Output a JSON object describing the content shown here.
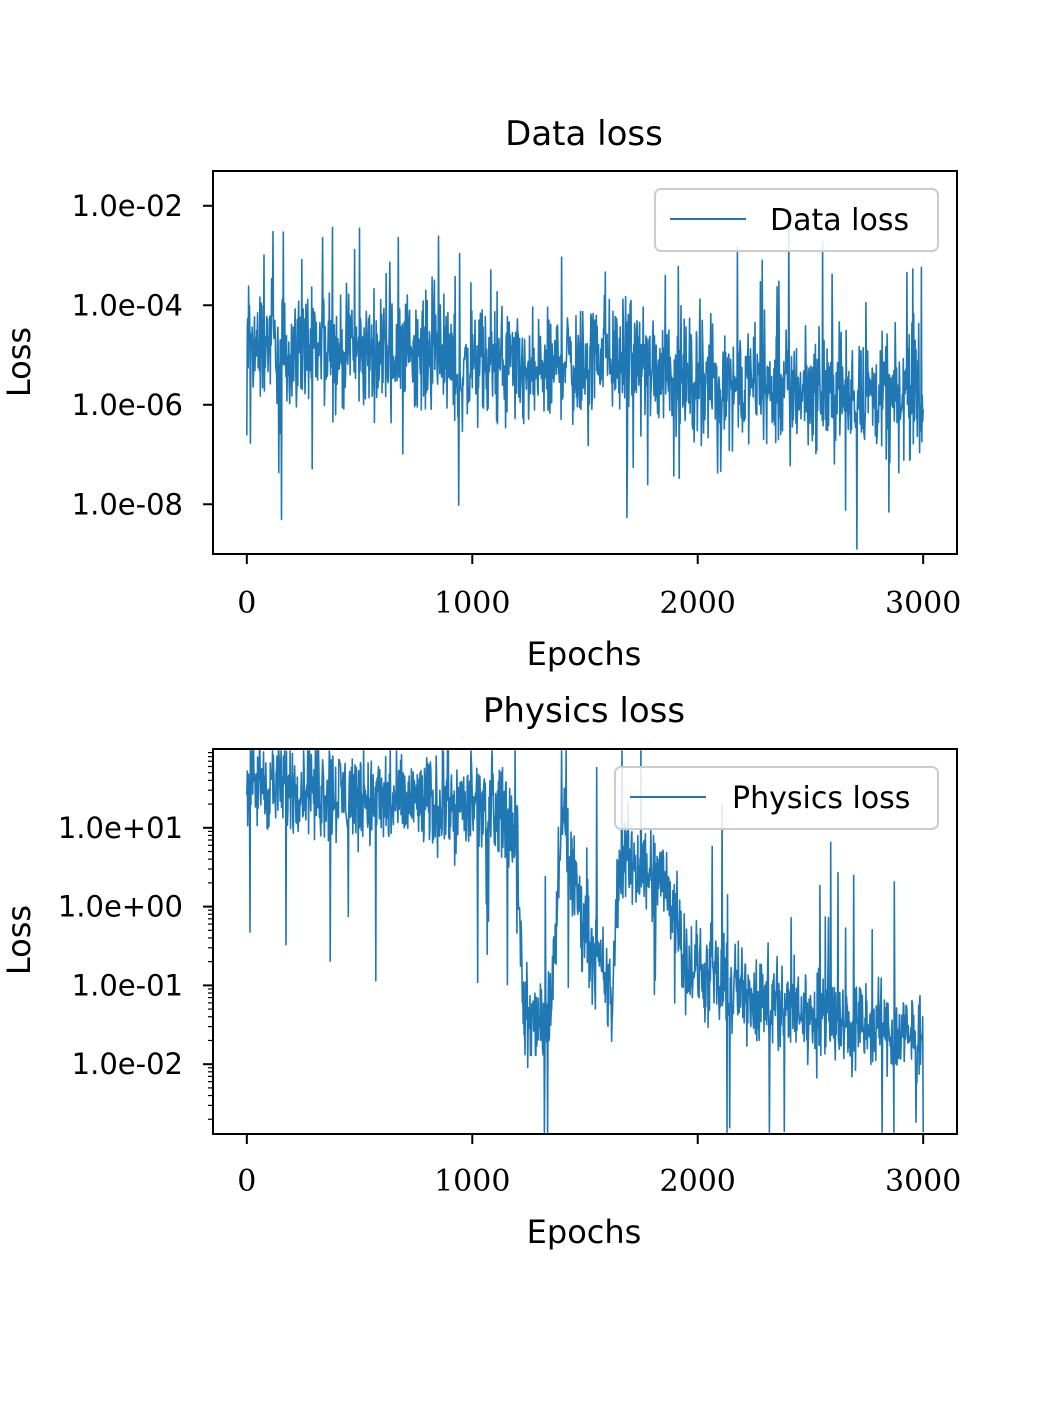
{
  "chart_data": [
    {
      "type": "line",
      "title": "Data loss",
      "xlabel": "Epochs",
      "ylabel": "Loss",
      "yscale": "log",
      "xlim": [
        -150,
        3150
      ],
      "ylim": [
        1e-09,
        0.05
      ],
      "xticks": [
        0,
        1000,
        2000,
        3000
      ],
      "xtick_labels": [
        "0",
        "1000",
        "2000",
        "3000"
      ],
      "yticks": [
        1e-08,
        1e-06,
        0.0001,
        0.01
      ],
      "ytick_labels": [
        "1.0e-08",
        "1.0e-06",
        "1.0e-04",
        "1.0e-02"
      ],
      "legend_position": "upper right",
      "color": "#1f77b4",
      "series": [
        {
          "name": "Data loss",
          "x": [
            0,
            50,
            100,
            150,
            200,
            250,
            300,
            350,
            400,
            450,
            500,
            550,
            600,
            650,
            700,
            750,
            800,
            850,
            900,
            950,
            1000,
            1050,
            1100,
            1150,
            1200,
            1250,
            1300,
            1350,
            1400,
            1450,
            1500,
            1550,
            1600,
            1650,
            1700,
            1750,
            1800,
            1850,
            1900,
            1950,
            2000,
            2050,
            2100,
            2150,
            2200,
            2250,
            2300,
            2350,
            2400,
            2450,
            2500,
            2550,
            2600,
            2650,
            2700,
            2750,
            2800,
            2850,
            2900,
            2950,
            3000
          ],
          "y": [
            2e-05,
            1.5e-05,
            2e-05,
            1.2e-05,
            1e-05,
            1.5e-05,
            1e-05,
            1.3e-05,
            1e-05,
            1.2e-05,
            1e-05,
            1.1e-05,
            1.3e-05,
            1e-05,
            1.2e-05,
            1.5e-05,
            1e-05,
            1.5e-05,
            6e-06,
            4e-06,
            5e-06,
            6e-06,
            5e-06,
            8e-06,
            4e-06,
            3e-06,
            5e-06,
            4e-06,
            1e-05,
            6e-06,
            7e-06,
            1e-05,
            1.5e-05,
            8e-06,
            1e-05,
            7e-06,
            6e-06,
            5e-06,
            4e-06,
            3e-06,
            3e-06,
            3e-06,
            2.5e-06,
            3e-06,
            2e-06,
            3e-06,
            2.5e-06,
            2e-06,
            3e-06,
            2e-06,
            2e-06,
            1.8e-06,
            2e-06,
            1.5e-06,
            1.8e-06,
            1.5e-06,
            1.5e-06,
            1.2e-06,
            1.5e-06,
            1.2e-06,
            1e-06
          ]
        }
      ]
    },
    {
      "type": "line",
      "title": "Physics loss",
      "xlabel": "Epochs",
      "ylabel": "Loss",
      "yscale": "log",
      "xlim": [
        -150,
        3150
      ],
      "ylim": [
        0.0013,
        100.0
      ],
      "xticks": [
        0,
        1000,
        2000,
        3000
      ],
      "xtick_labels": [
        "0",
        "1000",
        "2000",
        "3000"
      ],
      "yticks": [
        0.01,
        0.1,
        1.0,
        10.0
      ],
      "ytick_labels": [
        "1.0e-02",
        "1.0e-01",
        "1.0e+00",
        "1.0e+01"
      ],
      "legend_position": "upper right",
      "color": "#1f77b4",
      "series": [
        {
          "name": "Physics loss",
          "x": [
            0,
            50,
            100,
            150,
            200,
            250,
            300,
            350,
            400,
            450,
            500,
            550,
            600,
            650,
            700,
            750,
            800,
            850,
            900,
            950,
            1000,
            1050,
            1100,
            1150,
            1200,
            1225,
            1250,
            1300,
            1350,
            1400,
            1450,
            1500,
            1550,
            1600,
            1620,
            1650,
            1700,
            1750,
            1800,
            1850,
            1900,
            1950,
            2000,
            2050,
            2100,
            2150,
            2200,
            2250,
            2300,
            2350,
            2400,
            2450,
            2500,
            2550,
            2600,
            2650,
            2700,
            2750,
            2800,
            2850,
            2900,
            2950,
            3000
          ],
          "y": [
            45,
            38,
            36,
            35,
            33,
            34,
            32,
            30,
            28,
            26,
            24,
            22,
            21,
            20,
            20,
            21,
            20,
            19,
            19,
            18,
            18,
            17,
            16,
            14,
            8,
            0.05,
            0.03,
            0.04,
            0.05,
            15,
            2,
            0.6,
            0.2,
            0.1,
            0.05,
            4,
            4,
            3,
            3,
            2,
            1,
            0.2,
            0.15,
            0.12,
            0.1,
            0.09,
            0.08,
            0.08,
            0.07,
            0.06,
            0.05,
            0.05,
            0.04,
            0.04,
            0.035,
            0.03,
            0.03,
            0.028,
            0.025,
            0.025,
            0.022,
            0.02,
            0.03
          ]
        }
      ]
    }
  ]
}
